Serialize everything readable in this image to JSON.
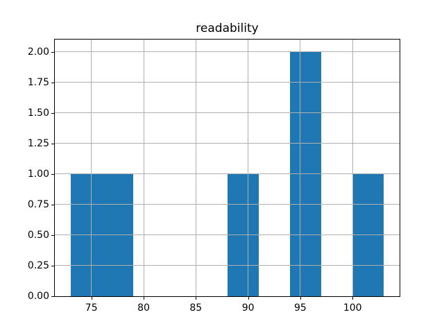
{
  "figure": {
    "background": "#ffffff"
  },
  "chart_data": {
    "type": "bar",
    "subtype": "histogram",
    "title": "readability",
    "bin_edges": [
      73,
      76,
      79,
      82,
      85,
      88,
      91,
      94,
      97,
      100,
      103
    ],
    "counts": [
      1,
      1,
      0,
      0,
      0,
      1,
      0,
      2,
      0,
      1
    ],
    "xlabel": "",
    "ylabel": "",
    "xlim": [
      71.5,
      104.5
    ],
    "ylim": [
      0,
      2.1
    ],
    "xticks": [
      75,
      80,
      85,
      90,
      95,
      100
    ],
    "xtick_labels": [
      "75",
      "80",
      "85",
      "90",
      "95",
      "100"
    ],
    "yticks": [
      0.0,
      0.25,
      0.5,
      0.75,
      1.0,
      1.25,
      1.5,
      1.75,
      2.0
    ],
    "ytick_labels": [
      "0.00",
      "0.25",
      "0.50",
      "0.75",
      "1.00",
      "1.25",
      "1.50",
      "1.75",
      "2.00"
    ],
    "grid": true,
    "legend": null,
    "bar_color": "#1f77b4",
    "grid_color": "#b0b0b0",
    "spine_color": "#000000",
    "text_color": "#000000"
  }
}
